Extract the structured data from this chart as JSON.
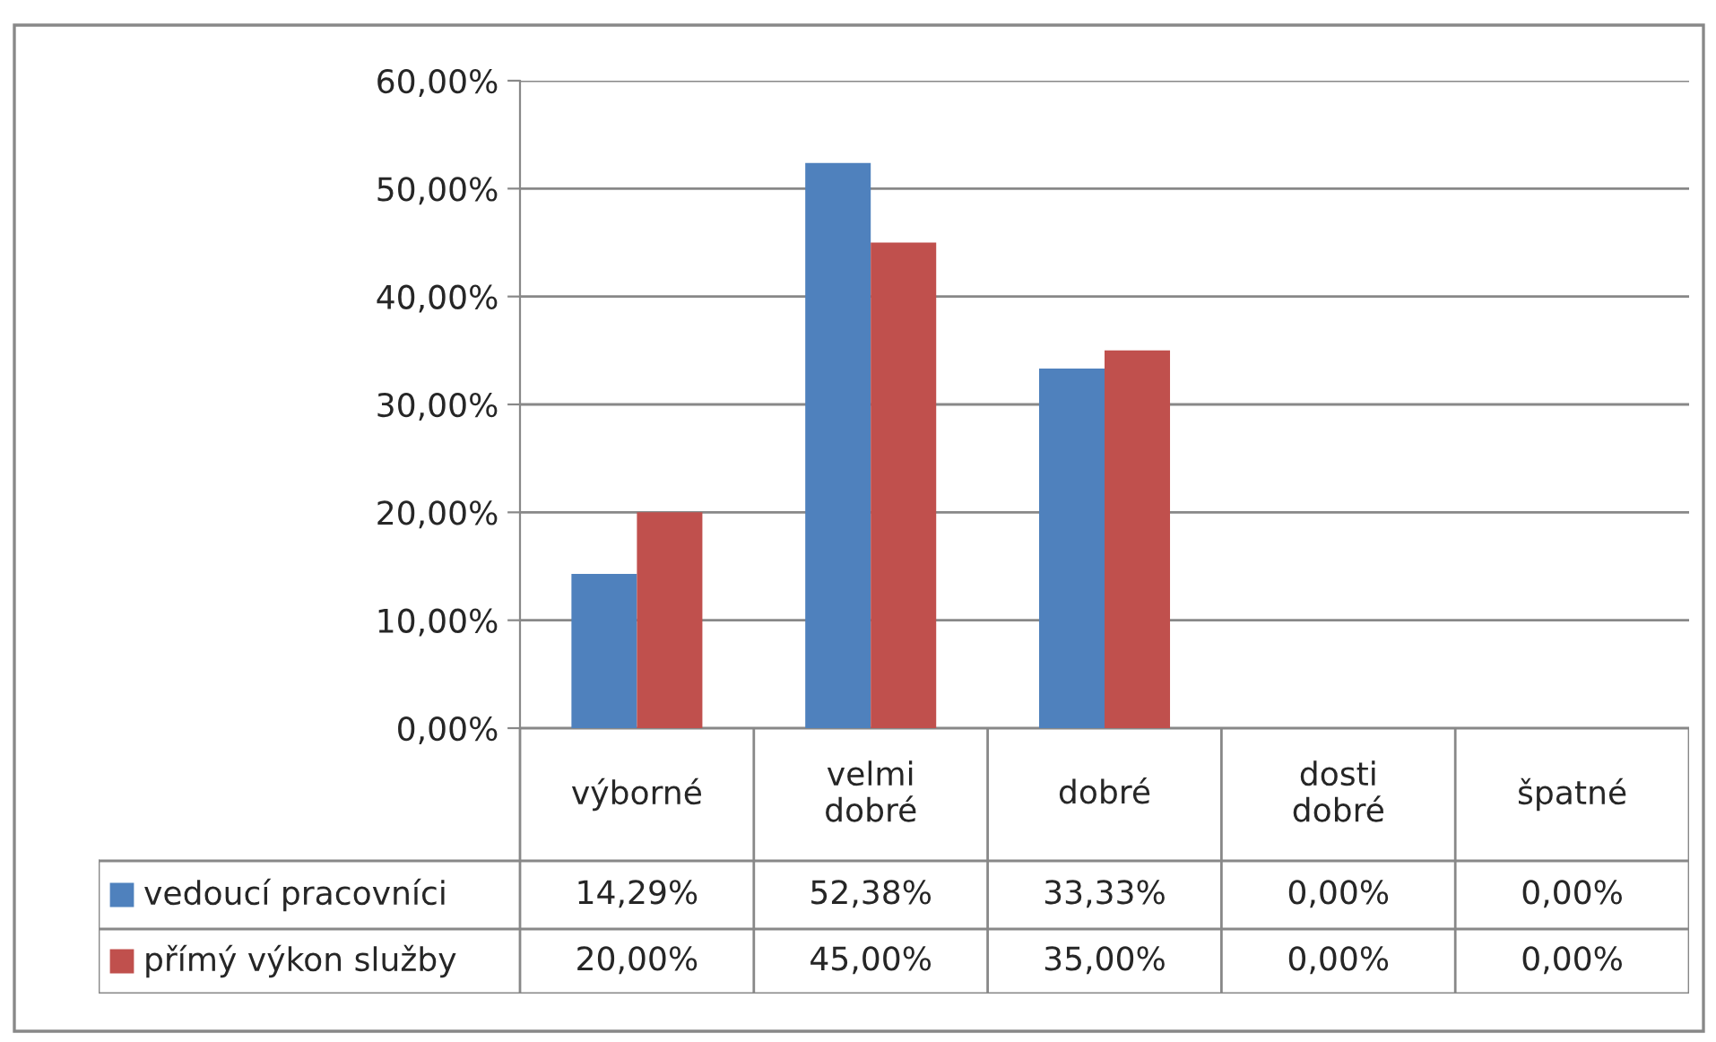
{
  "chart_data": {
    "type": "bar",
    "categories": [
      "výborné",
      "velmi dobré",
      "dobré",
      "dosti dobré",
      "špatné"
    ],
    "series": [
      {
        "name": "vedoucí pracovníci",
        "color": "#4f81bd",
        "values": [
          14.29,
          52.38,
          33.33,
          0,
          0
        ],
        "value_labels": [
          "14,29%",
          "52,38%",
          "33,33%",
          "0,00%",
          "0,00%"
        ]
      },
      {
        "name": "přímý výkon služby",
        "color": "#c0504d",
        "values": [
          20,
          45,
          35,
          0,
          0
        ],
        "value_labels": [
          "20,00%",
          "45,00%",
          "35,00%",
          "0,00%",
          "0,00%"
        ]
      }
    ],
    "ylim": [
      0,
      60
    ],
    "yticks": [
      {
        "value": 0,
        "label": "0,00%"
      },
      {
        "value": 10,
        "label": "10,00%"
      },
      {
        "value": 20,
        "label": "20,00%"
      },
      {
        "value": 30,
        "label": "30,00%"
      },
      {
        "value": 40,
        "label": "40,00%"
      },
      {
        "value": 50,
        "label": "50,00%"
      },
      {
        "value": 60,
        "label": "60,00%"
      }
    ],
    "grid": "y",
    "legend": "bottom left"
  }
}
